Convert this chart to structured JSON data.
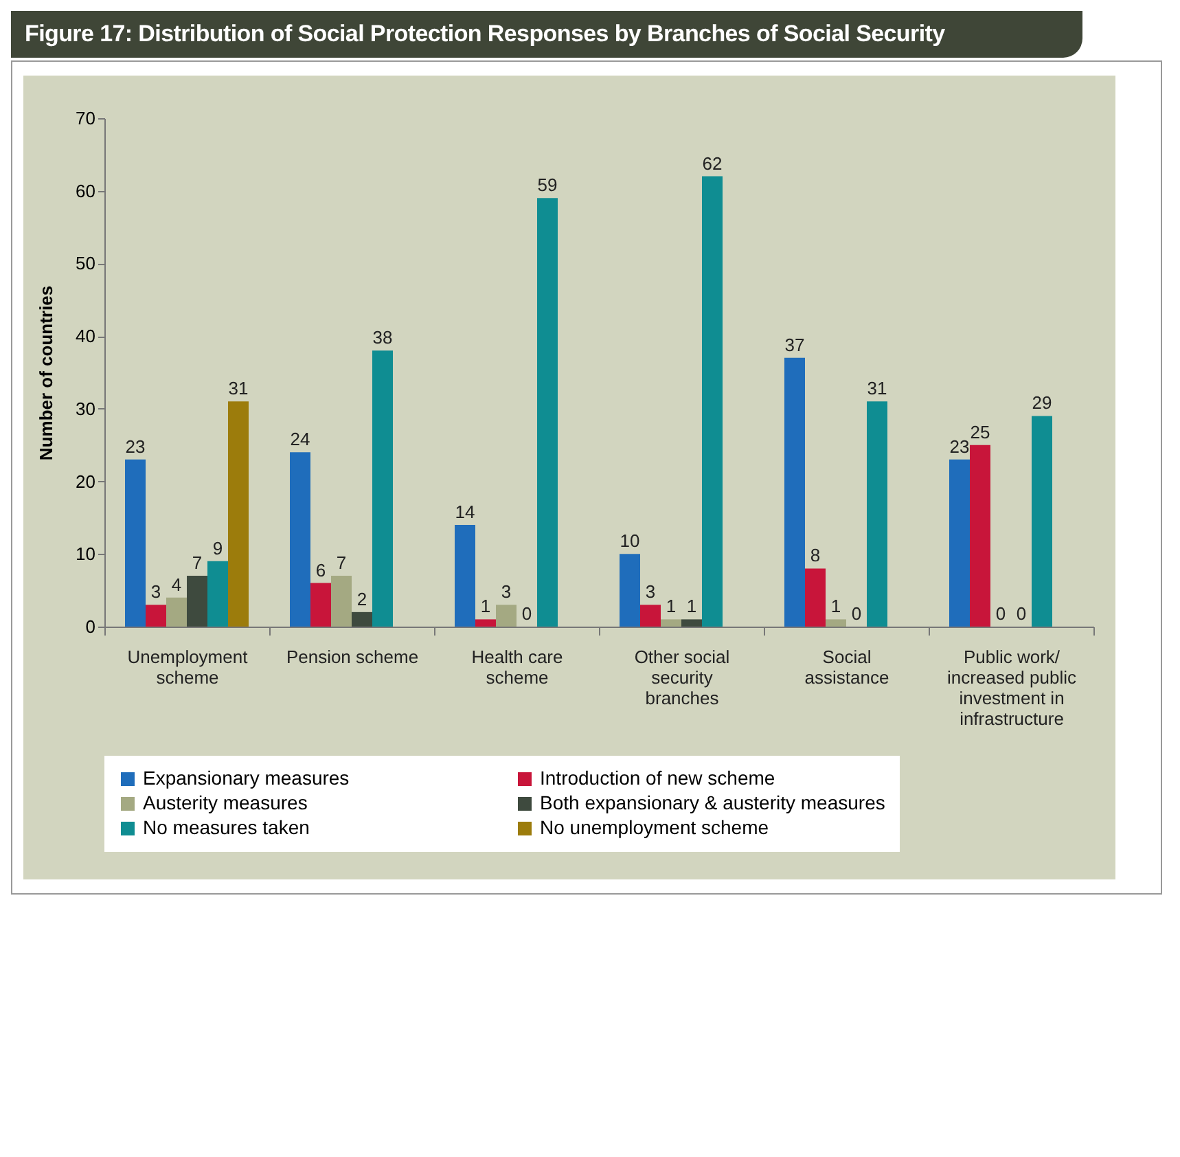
{
  "chart_data": {
    "type": "bar",
    "title": "Figure 17: Distribution of Social Protection Responses by Branches of Social Security",
    "ylabel": "Number of countries",
    "categories": [
      "Unemployment scheme",
      "Pension scheme",
      "Health care scheme",
      "Other social security branches",
      "Social assistance",
      "Public work/ increased public investment in infrastructure"
    ],
    "series": [
      {
        "name": "Expansionary measures",
        "color": "#1f6dbb",
        "values": [
          23,
          24,
          14,
          10,
          37,
          23
        ]
      },
      {
        "name": "Introduction of new scheme",
        "color": "#c8153a",
        "values": [
          3,
          6,
          1,
          3,
          8,
          25
        ]
      },
      {
        "name": "Austerity measures",
        "color": "#a4a982",
        "values": [
          4,
          7,
          3,
          1,
          1,
          0
        ]
      },
      {
        "name": "Both expansionary & austerity measures",
        "color": "#3e4a3e",
        "values": [
          7,
          2,
          0,
          1,
          0,
          0
        ]
      },
      {
        "name": "No measures taken",
        "color": "#0f8d92",
        "values": [
          9,
          38,
          59,
          62,
          31,
          29
        ]
      },
      {
        "name": "No unemployment scheme",
        "color": "#9c7c0c",
        "values": [
          31,
          null,
          null,
          null,
          null,
          null
        ]
      }
    ],
    "ylim": [
      0,
      70
    ],
    "yticks": [
      0,
      10,
      20,
      30,
      40,
      50,
      60,
      70
    ],
    "grid": false,
    "legend": "bottom",
    "data_labels": true
  }
}
